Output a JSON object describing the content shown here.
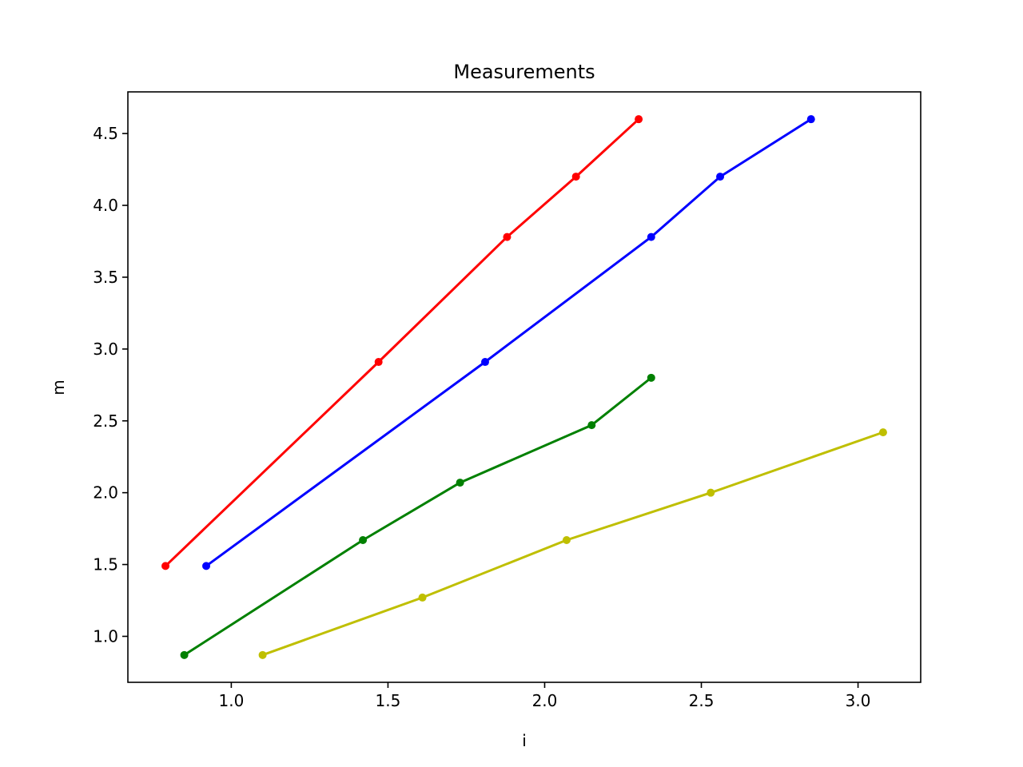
{
  "chart_data": {
    "type": "line",
    "title": "Measurements",
    "xlabel": "i",
    "ylabel": "m",
    "xlim": [
      0.67,
      3.2
    ],
    "ylim": [
      0.68,
      4.79
    ],
    "xticks": [
      1.0,
      1.5,
      2.0,
      2.5,
      3.0
    ],
    "xtick_labels": [
      "1.0",
      "1.5",
      "2.0",
      "2.5",
      "3.0"
    ],
    "yticks": [
      1.0,
      1.5,
      2.0,
      2.5,
      3.0,
      3.5,
      4.0,
      4.5
    ],
    "ytick_labels": [
      "1.0",
      "1.5",
      "2.0",
      "2.5",
      "3.0",
      "3.5",
      "4.0",
      "4.5"
    ],
    "grid": false,
    "series": [
      {
        "color": "#ff0000",
        "x": [
          0.79,
          1.47,
          1.88,
          2.1,
          2.3
        ],
        "y": [
          1.49,
          2.91,
          3.78,
          4.2,
          4.6
        ]
      },
      {
        "color": "#0000ff",
        "x": [
          0.92,
          1.81,
          2.34,
          2.56,
          2.85
        ],
        "y": [
          1.49,
          2.91,
          3.78,
          4.2,
          4.6
        ]
      },
      {
        "color": "#008000",
        "x": [
          0.85,
          1.42,
          1.73,
          2.15,
          2.34
        ],
        "y": [
          0.87,
          1.67,
          2.07,
          2.47,
          2.8
        ]
      },
      {
        "color": "#bfbf00",
        "x": [
          1.1,
          1.61,
          2.07,
          2.53,
          3.08
        ],
        "y": [
          0.87,
          1.27,
          1.67,
          2.0,
          2.42
        ]
      }
    ]
  }
}
